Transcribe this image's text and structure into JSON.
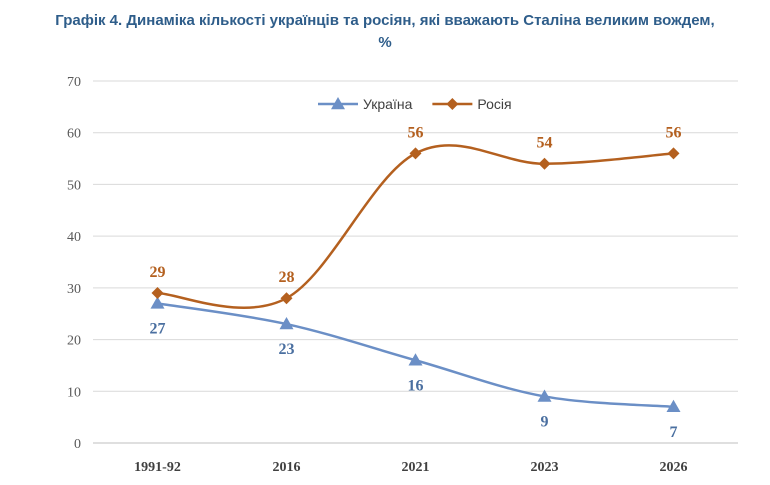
{
  "chart_data": {
    "type": "line",
    "title_line1": "Графік 4. Динаміка кількості українців та росіян, які вважають Сталіна великим вождем,",
    "title_line2": "%",
    "categories": [
      "1991-92",
      "2016",
      "2021",
      "2023",
      "2026"
    ],
    "ylim": [
      0,
      70
    ],
    "yticks": [
      0,
      10,
      20,
      30,
      40,
      50,
      60,
      70
    ],
    "grid": true,
    "legend_position": "top-center",
    "series": [
      {
        "name": "Україна",
        "values": [
          27,
          23,
          16,
          9,
          7
        ],
        "color": "#6b8fc6",
        "marker": "triangle",
        "label_placement": "below"
      },
      {
        "name": "Росія",
        "values": [
          29,
          28,
          56,
          54,
          56
        ],
        "color": "#b4601f",
        "marker": "diamond",
        "label_placement": "above"
      }
    ],
    "data_label_colors": {
      "Україна": "#4a6fa0",
      "Росія": "#b4601f"
    }
  }
}
